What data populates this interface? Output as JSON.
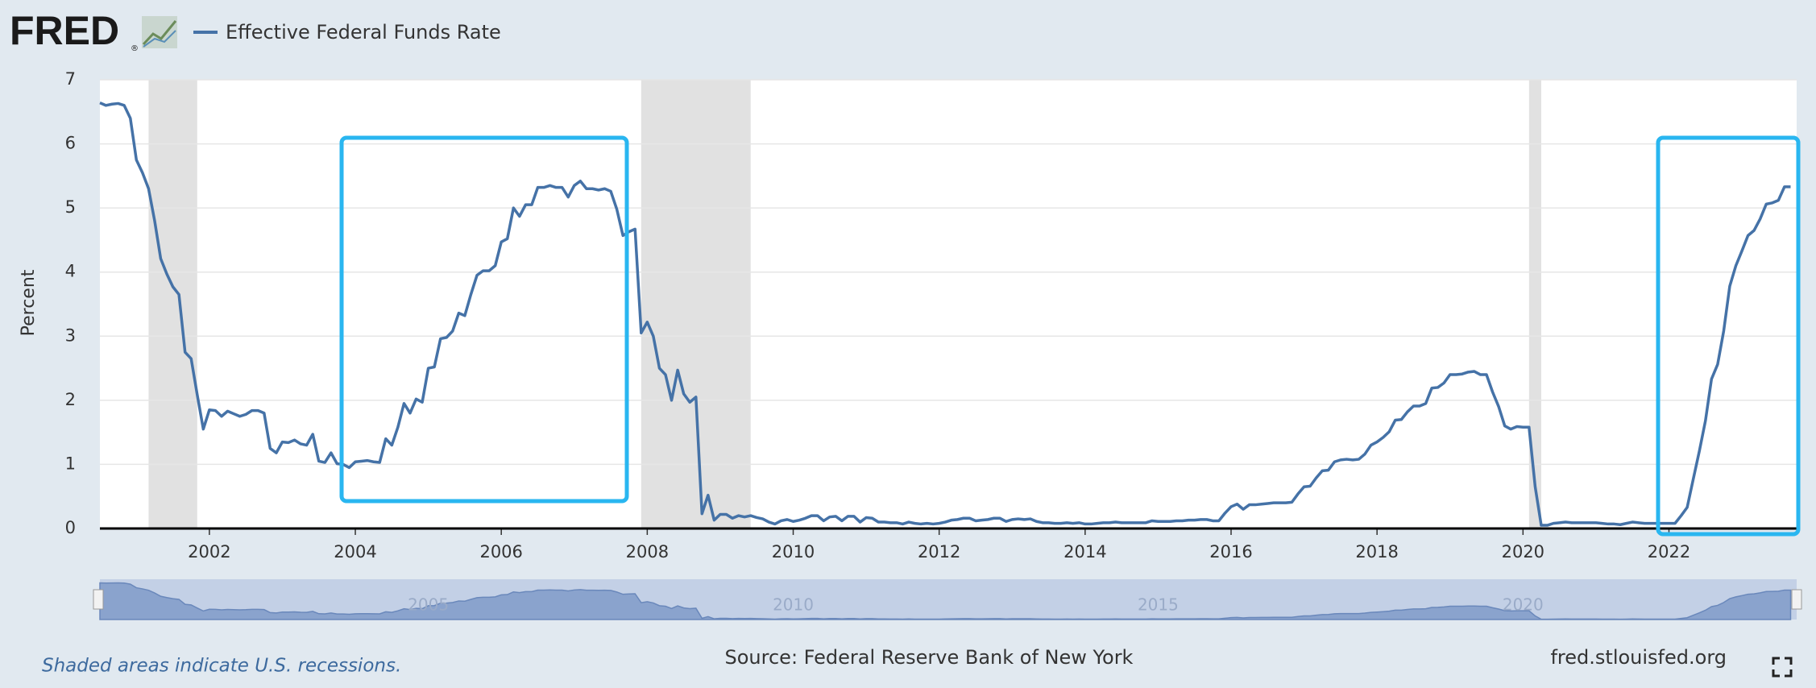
{
  "header": {
    "logo": "FRED",
    "logo_mark": "®"
  },
  "chart_data": {
    "type": "line",
    "y_label": "Percent",
    "series": [
      {
        "name": "Effective Federal Funds Rate",
        "color": "#4572a7",
        "x": [
          2000.5,
          2000.583,
          2000.667,
          2000.75,
          2000.833,
          2000.917,
          2001,
          2001.083,
          2001.167,
          2001.25,
          2001.333,
          2001.417,
          2001.5,
          2001.583,
          2001.667,
          2001.75,
          2001.833,
          2001.917,
          2002,
          2002.083,
          2002.167,
          2002.25,
          2002.333,
          2002.417,
          2002.5,
          2002.583,
          2002.667,
          2002.75,
          2002.833,
          2002.917,
          2003,
          2003.083,
          2003.167,
          2003.25,
          2003.333,
          2003.417,
          2003.5,
          2003.583,
          2003.667,
          2003.75,
          2003.833,
          2003.917,
          2004,
          2004.083,
          2004.167,
          2004.25,
          2004.333,
          2004.417,
          2004.5,
          2004.583,
          2004.667,
          2004.75,
          2004.833,
          2004.917,
          2005,
          2005.083,
          2005.167,
          2005.25,
          2005.333,
          2005.417,
          2005.5,
          2005.583,
          2005.667,
          2005.75,
          2005.833,
          2005.917,
          2006,
          2006.083,
          2006.167,
          2006.25,
          2006.333,
          2006.417,
          2006.5,
          2006.583,
          2006.667,
          2006.75,
          2006.833,
          2006.917,
          2007,
          2007.083,
          2007.167,
          2007.25,
          2007.333,
          2007.417,
          2007.5,
          2007.583,
          2007.667,
          2007.75,
          2007.833,
          2007.917,
          2008,
          2008.083,
          2008.167,
          2008.25,
          2008.333,
          2008.417,
          2008.5,
          2008.583,
          2008.667,
          2008.75,
          2008.833,
          2008.917,
          2009,
          2009.083,
          2009.167,
          2009.25,
          2009.333,
          2009.417,
          2009.5,
          2009.583,
          2009.667,
          2009.75,
          2009.833,
          2009.917,
          2010,
          2010.083,
          2010.167,
          2010.25,
          2010.333,
          2010.417,
          2010.5,
          2010.583,
          2010.667,
          2010.75,
          2010.833,
          2010.917,
          2011,
          2011.083,
          2011.167,
          2011.25,
          2011.333,
          2011.417,
          2011.5,
          2011.583,
          2011.667,
          2011.75,
          2011.833,
          2011.917,
          2012,
          2012.083,
          2012.167,
          2012.25,
          2012.333,
          2012.417,
          2012.5,
          2012.583,
          2012.667,
          2012.75,
          2012.833,
          2012.917,
          2013,
          2013.083,
          2013.167,
          2013.25,
          2013.333,
          2013.417,
          2013.5,
          2013.583,
          2013.667,
          2013.75,
          2013.833,
          2013.917,
          2014,
          2014.083,
          2014.167,
          2014.25,
          2014.333,
          2014.417,
          2014.5,
          2014.583,
          2014.667,
          2014.75,
          2014.833,
          2014.917,
          2015,
          2015.083,
          2015.167,
          2015.25,
          2015.333,
          2015.417,
          2015.5,
          2015.583,
          2015.667,
          2015.75,
          2015.833,
          2015.917,
          2016,
          2016.083,
          2016.167,
          2016.25,
          2016.333,
          2016.417,
          2016.5,
          2016.583,
          2016.667,
          2016.75,
          2016.833,
          2016.917,
          2017,
          2017.083,
          2017.167,
          2017.25,
          2017.333,
          2017.417,
          2017.5,
          2017.583,
          2017.667,
          2017.75,
          2017.833,
          2017.917,
          2018,
          2018.083,
          2018.167,
          2018.25,
          2018.333,
          2018.417,
          2018.5,
          2018.583,
          2018.667,
          2018.75,
          2018.833,
          2018.917,
          2019,
          2019.083,
          2019.167,
          2019.25,
          2019.333,
          2019.417,
          2019.5,
          2019.583,
          2019.667,
          2019.75,
          2019.833,
          2019.917,
          2020,
          2020.083,
          2020.167,
          2020.25,
          2020.333,
          2020.417,
          2020.5,
          2020.583,
          2020.667,
          2020.75,
          2020.833,
          2020.917,
          2021,
          2021.083,
          2021.167,
          2021.25,
          2021.333,
          2021.417,
          2021.5,
          2021.583,
          2021.667,
          2021.75,
          2021.833,
          2021.917,
          2022,
          2022.083,
          2022.167,
          2022.25,
          2022.333,
          2022.417,
          2022.5,
          2022.583,
          2022.667,
          2022.75,
          2022.833,
          2022.917,
          2023,
          2023.083,
          2023.167,
          2023.25,
          2023.333,
          2023.417,
          2023.5,
          2023.583,
          2023.667
        ],
        "values": [
          6.64,
          6.6,
          6.62,
          6.63,
          6.6,
          6.4,
          5.75,
          5.55,
          5.3,
          4.8,
          4.21,
          3.97,
          3.77,
          3.65,
          2.75,
          2.65,
          2.09,
          1.55,
          1.85,
          1.84,
          1.75,
          1.83,
          1.79,
          1.75,
          1.78,
          1.84,
          1.84,
          1.8,
          1.25,
          1.18,
          1.35,
          1.34,
          1.38,
          1.32,
          1.3,
          1.47,
          1.05,
          1.03,
          1.18,
          1.01,
          1.0,
          0.95,
          1.04,
          1.05,
          1.06,
          1.04,
          1.03,
          1.4,
          1.3,
          1.58,
          1.95,
          1.8,
          2.02,
          1.97,
          2.5,
          2.52,
          2.96,
          2.98,
          3.08,
          3.36,
          3.32,
          3.65,
          3.95,
          4.02,
          4.02,
          4.1,
          4.47,
          4.52,
          5.0,
          4.87,
          5.05,
          5.05,
          5.32,
          5.32,
          5.35,
          5.32,
          5.32,
          5.17,
          5.35,
          5.42,
          5.3,
          5.3,
          5.28,
          5.3,
          5.26,
          4.98,
          4.57,
          4.63,
          4.67,
          3.05,
          3.22,
          3.0,
          2.5,
          2.4,
          2.0,
          2.47,
          2.1,
          1.97,
          2.05,
          0.23,
          0.52,
          0.13,
          0.22,
          0.22,
          0.16,
          0.2,
          0.18,
          0.2,
          0.17,
          0.15,
          0.1,
          0.07,
          0.12,
          0.14,
          0.11,
          0.13,
          0.16,
          0.2,
          0.2,
          0.12,
          0.18,
          0.19,
          0.12,
          0.19,
          0.19,
          0.1,
          0.17,
          0.16,
          0.1,
          0.1,
          0.09,
          0.09,
          0.07,
          0.1,
          0.08,
          0.07,
          0.08,
          0.07,
          0.08,
          0.1,
          0.13,
          0.14,
          0.16,
          0.16,
          0.12,
          0.13,
          0.14,
          0.16,
          0.16,
          0.11,
          0.14,
          0.15,
          0.14,
          0.15,
          0.11,
          0.09,
          0.09,
          0.08,
          0.08,
          0.09,
          0.08,
          0.09,
          0.07,
          0.07,
          0.08,
          0.09,
          0.09,
          0.1,
          0.09,
          0.09,
          0.09,
          0.09,
          0.09,
          0.12,
          0.11,
          0.11,
          0.11,
          0.12,
          0.12,
          0.13,
          0.13,
          0.14,
          0.14,
          0.12,
          0.12,
          0.24,
          0.34,
          0.38,
          0.3,
          0.37,
          0.37,
          0.38,
          0.39,
          0.4,
          0.4,
          0.4,
          0.41,
          0.54,
          0.65,
          0.66,
          0.79,
          0.9,
          0.91,
          1.04,
          1.07,
          1.08,
          1.07,
          1.08,
          1.16,
          1.3,
          1.35,
          1.42,
          1.51,
          1.69,
          1.7,
          1.82,
          1.91,
          1.91,
          1.95,
          2.19,
          2.2,
          2.27,
          2.4,
          2.4,
          2.41,
          2.44,
          2.45,
          2.4,
          2.4,
          2.13,
          1.9,
          1.6,
          1.55,
          1.59,
          1.58,
          1.58,
          0.65,
          0.05,
          0.05,
          0.08,
          0.09,
          0.1,
          0.09,
          0.09,
          0.09,
          0.09,
          0.09,
          0.08,
          0.07,
          0.07,
          0.06,
          0.08,
          0.1,
          0.09,
          0.08,
          0.08,
          0.08,
          0.08,
          0.08,
          0.08,
          0.2,
          0.33,
          0.77,
          1.21,
          1.68,
          2.33,
          2.56,
          3.08,
          3.78,
          4.1,
          4.33,
          4.57,
          4.65,
          4.83,
          5.06,
          5.08,
          5.12,
          5.33,
          5.33
        ]
      }
    ],
    "xlim": [
      2000.5,
      2023.75
    ],
    "xticks": [
      2002,
      2004,
      2006,
      2008,
      2010,
      2012,
      2014,
      2016,
      2018,
      2020,
      2022
    ],
    "ylim": [
      0,
      7
    ],
    "yticks": [
      0,
      1,
      2,
      3,
      4,
      5,
      6,
      7
    ],
    "grid": true,
    "recessions": [
      [
        2001.167,
        2001.833
      ],
      [
        2007.917,
        2009.417
      ],
      [
        2020.083,
        2020.25
      ]
    ],
    "recession_color": "#e1e1e1",
    "navigator_ticks": [
      2005,
      2010,
      2015,
      2020
    ],
    "footnote": "Shaded areas indicate U.S. recessions.",
    "source": "Source: Federal Reserve Bank of New York",
    "site": "fred.stlouisfed.org"
  }
}
